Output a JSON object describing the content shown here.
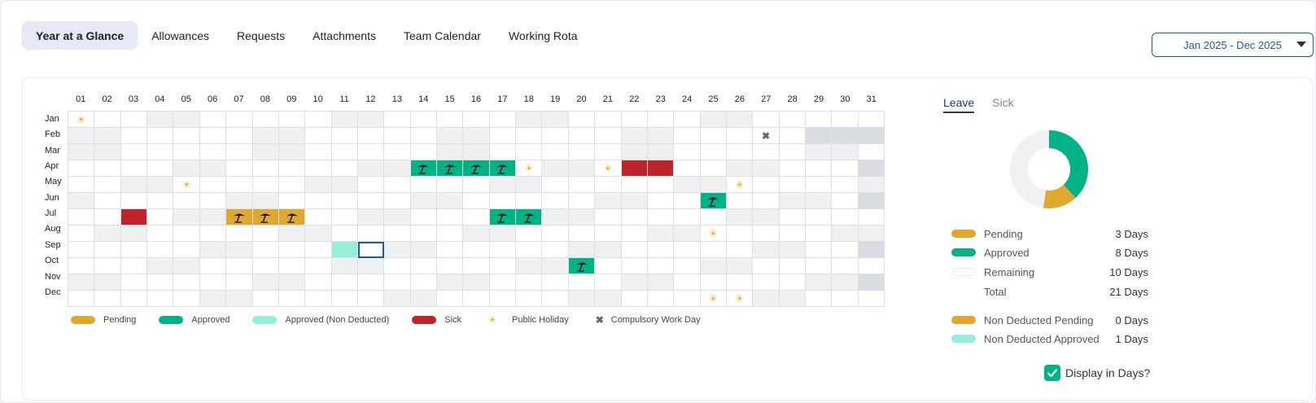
{
  "tabs": [
    {
      "label": "Year at a Glance",
      "active": true
    },
    {
      "label": "Allowances"
    },
    {
      "label": "Requests"
    },
    {
      "label": "Attachments"
    },
    {
      "label": "Team Calendar"
    },
    {
      "label": "Working Rota"
    }
  ],
  "range_select": {
    "value": "Jan 2025 - Dec 2025"
  },
  "calendar": {
    "days": [
      "01",
      "02",
      "03",
      "04",
      "05",
      "06",
      "07",
      "08",
      "09",
      "10",
      "11",
      "12",
      "13",
      "14",
      "15",
      "16",
      "17",
      "18",
      "19",
      "20",
      "21",
      "22",
      "23",
      "24",
      "25",
      "26",
      "27",
      "28",
      "29",
      "30",
      "31"
    ],
    "months": [
      "Jan",
      "Feb",
      "Mar",
      "Apr",
      "May",
      "Jun",
      "Jul",
      "Aug",
      "Sep",
      "Oct",
      "Nov",
      "Dec"
    ],
    "events": [
      {
        "month": 0,
        "day": 1,
        "type": "holiday"
      },
      {
        "month": 1,
        "day": 27,
        "type": "compulsory"
      },
      {
        "month": 3,
        "day": 14,
        "type": "approved"
      },
      {
        "month": 3,
        "day": 15,
        "type": "approved"
      },
      {
        "month": 3,
        "day": 16,
        "type": "approved"
      },
      {
        "month": 3,
        "day": 17,
        "type": "approved"
      },
      {
        "month": 3,
        "day": 18,
        "type": "holiday"
      },
      {
        "month": 3,
        "day": 21,
        "type": "holiday"
      },
      {
        "month": 3,
        "day": 22,
        "type": "sick"
      },
      {
        "month": 3,
        "day": 23,
        "type": "sick"
      },
      {
        "month": 4,
        "day": 5,
        "type": "holiday"
      },
      {
        "month": 4,
        "day": 26,
        "type": "holiday"
      },
      {
        "month": 5,
        "day": 25,
        "type": "approved"
      },
      {
        "month": 6,
        "day": 3,
        "type": "sick"
      },
      {
        "month": 6,
        "day": 7,
        "type": "pending"
      },
      {
        "month": 6,
        "day": 8,
        "type": "pending"
      },
      {
        "month": 6,
        "day": 9,
        "type": "pending"
      },
      {
        "month": 6,
        "day": 17,
        "type": "approved"
      },
      {
        "month": 6,
        "day": 18,
        "type": "approved"
      },
      {
        "month": 7,
        "day": 25,
        "type": "holiday"
      },
      {
        "month": 8,
        "day": 11,
        "type": "nondeducted"
      },
      {
        "month": 8,
        "day": 12,
        "type": "selected"
      },
      {
        "month": 9,
        "day": 20,
        "type": "approved"
      },
      {
        "month": 11,
        "day": 25,
        "type": "holiday"
      },
      {
        "month": 11,
        "day": 26,
        "type": "holiday"
      }
    ]
  },
  "legend": [
    {
      "label": "Pending",
      "kind": "pill",
      "color": "#e0a82e"
    },
    {
      "label": "Approved",
      "kind": "pill",
      "color": "#00b386"
    },
    {
      "label": "Approved (Non Deducted)",
      "kind": "pill",
      "color": "#97eed9"
    },
    {
      "label": "Sick",
      "kind": "pill",
      "color": "#c0232a"
    },
    {
      "label": "Public Holiday",
      "kind": "sun"
    },
    {
      "label": "Compulsory Work Day",
      "kind": "cross"
    }
  ],
  "side_tabs": [
    {
      "label": "Leave",
      "active": true
    },
    {
      "label": "Sick"
    }
  ],
  "summary": {
    "pending": {
      "label": "Pending",
      "value": "3 Days",
      "color": "#e0a82e"
    },
    "approved": {
      "label": "Approved",
      "value": "8 Days",
      "color": "#00b386"
    },
    "remaining": {
      "label": "Remaining",
      "value": "10 Days",
      "color": "#f4f5f6"
    },
    "total": {
      "label": "Total",
      "value": "21 Days"
    },
    "nd_pending": {
      "label": "Non Deducted Pending",
      "value": "0 Days",
      "color": "#e0a82e"
    },
    "nd_approved": {
      "label": "Non Deducted Approved",
      "value": "1 Days",
      "color": "#97eed9"
    }
  },
  "donut": {
    "segments": [
      {
        "name": "Approved",
        "value": 8,
        "color": "#00b386"
      },
      {
        "name": "Pending",
        "value": 3,
        "color": "#e0a82e"
      },
      {
        "name": "Remaining",
        "value": 10,
        "color": "#f0f1f2"
      }
    ]
  },
  "display_days": {
    "label": "Display in Days?",
    "checked": true
  }
}
